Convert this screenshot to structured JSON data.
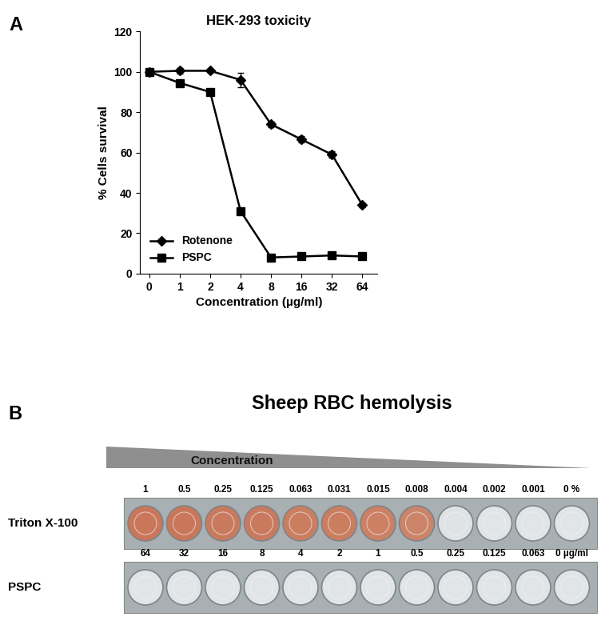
{
  "chart_data": {
    "type": "line",
    "title": "HEK-293 toxicity",
    "x_label": "Concentration (µg/ml)",
    "y_label": "% Cells survival",
    "categories": [
      "0",
      "1",
      "2",
      "4",
      "8",
      "16",
      "32",
      "64"
    ],
    "series": [
      {
        "name": "Rotenone",
        "color": "#000000",
        "marker": "diamond",
        "line_style": "solid",
        "values": [
          100,
          100.5,
          100.5,
          96,
          74,
          66.5,
          59,
          34
        ],
        "errors": [
          0,
          1.5,
          0,
          3.5,
          1.5,
          1.5,
          1.5,
          1
        ]
      },
      {
        "name": "PSPC",
        "color": "#000000",
        "marker": "square",
        "line_style": "solid",
        "values": [
          100,
          94.5,
          90,
          31,
          8,
          8.5,
          9,
          8.5
        ],
        "errors": [
          0,
          1,
          0.5,
          0.5,
          0.5,
          0.5,
          0.5,
          0.5
        ]
      }
    ],
    "ylim": [
      0,
      120
    ],
    "yticks": [
      0,
      20,
      40,
      60,
      80,
      100,
      120
    ],
    "grid": false,
    "legend": "lower left"
  },
  "panel_labels": [
    "A",
    "B"
  ],
  "hemolysis": {
    "title": "Sheep RBC hemolysis",
    "gradient_label": "Concentration",
    "rows": [
      {
        "name": "Triton X-100",
        "labels": [
          "1",
          "0.5",
          "0.25",
          "0.125",
          "0.063",
          "0.031",
          "0.015",
          "0.008",
          "0.004",
          "0.002",
          "0.001",
          "0 %"
        ],
        "colors": [
          "#c9765a",
          "#c9765a",
          "#c97a5e",
          "#c97a5e",
          "#cb7d60",
          "#cb7d60",
          "#cc8064",
          "#cc8468",
          "#dfe3e5",
          "#e1e5e7",
          "#e1e5e7",
          "#e1e5e7"
        ]
      },
      {
        "name": "PSPC",
        "labels": [
          "64",
          "32",
          "16",
          "8",
          "4",
          "2",
          "1",
          "0.5",
          "0.25",
          "0.125",
          "0.063",
          "0 µg/ml"
        ],
        "colors": [
          "#e1e5e7",
          "#e1e5e7",
          "#e1e5e7",
          "#e1e5e7",
          "#e1e5e7",
          "#e1e5e7",
          "#e1e5e7",
          "#e1e5e7",
          "#e1e5e7",
          "#e1e5e7",
          "#e1e5e7",
          "#e1e5e7"
        ]
      }
    ]
  }
}
